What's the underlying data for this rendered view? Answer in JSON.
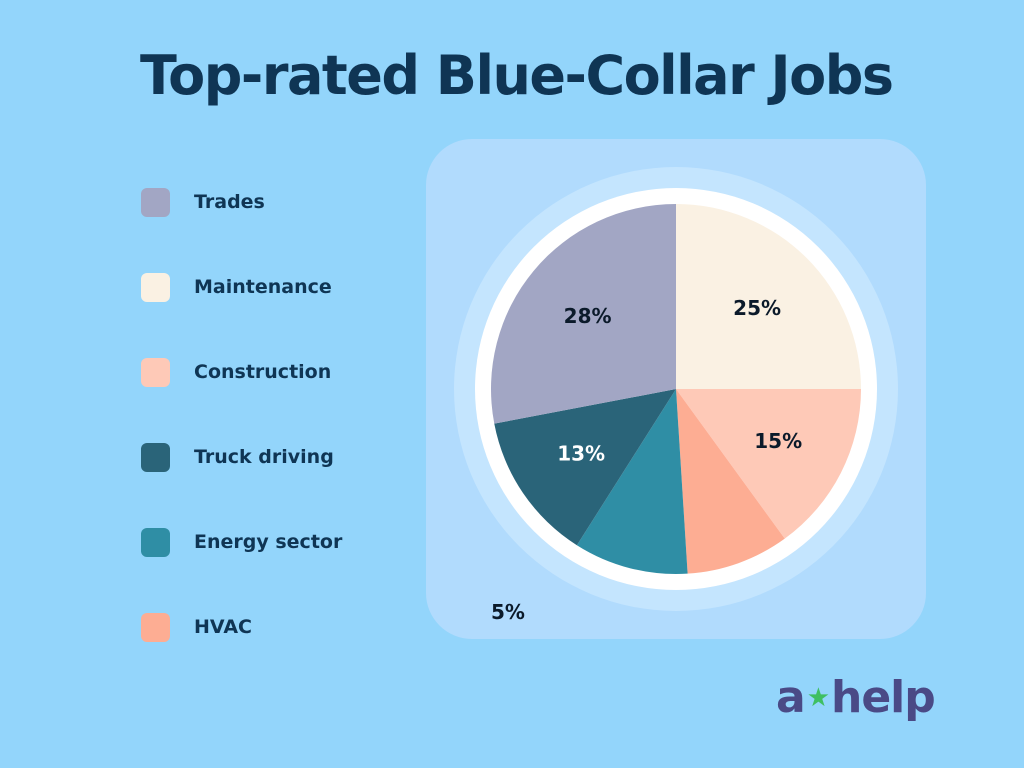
{
  "chart_data": {
    "type": "pie",
    "title": "Top-rated Blue-Collar Jobs",
    "legend_position": "left",
    "categories": [
      "Trades",
      "Maintenance",
      "Construction",
      "Truck driving",
      "Energy sector",
      "HVAC"
    ],
    "values": [
      28,
      25,
      15,
      13,
      10,
      9
    ],
    "data_labels": [
      "28%",
      "25%",
      "15%",
      "13%",
      "",
      ""
    ],
    "colors": [
      "#a2a6c4",
      "#faf1e3",
      "#fec9b7",
      "#2a6479",
      "#2f8ea5",
      "#fdad93"
    ],
    "annotations": [
      "5%"
    ]
  },
  "logo": {
    "text_left": "a",
    "text_right": "help",
    "star_icon": "star-icon",
    "text_color": "#4a4a86",
    "star_color": "#3fbf62"
  }
}
